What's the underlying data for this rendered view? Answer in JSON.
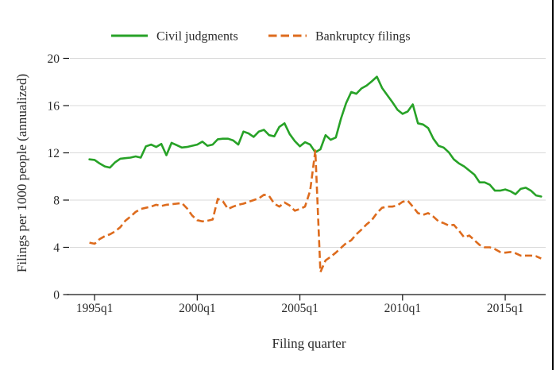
{
  "style": {
    "background": "#ffffff",
    "grid_color": "#d9d9d9",
    "axis_color": "#141414",
    "text_color": "#2b2b2b",
    "right_edge_line_color": "#000000"
  },
  "chart_data": {
    "type": "line",
    "title": "",
    "xlabel": "Filing quarter",
    "ylabel": "Filings per 1000 people (annualized)",
    "ylim": [
      0,
      20
    ],
    "y_ticks": [
      0,
      4,
      8,
      12,
      16,
      20
    ],
    "x_start": "1994q4",
    "x_end": "2016q4",
    "frequency": "quarterly",
    "grid": "horizontal",
    "legend_position": "top",
    "x_ticks": [
      {
        "label": "1995q1",
        "index": 1
      },
      {
        "label": "2000q1",
        "index": 21
      },
      {
        "label": "2005q1",
        "index": 41
      },
      {
        "label": "2010q1",
        "index": 61
      },
      {
        "label": "2015q1",
        "index": 81
      }
    ],
    "series": [
      {
        "name": "Civil judgments",
        "color": "#27a227",
        "line_style": "solid",
        "values": [
          11.45,
          11.4,
          11.1,
          10.85,
          10.75,
          11.2,
          11.5,
          11.55,
          11.6,
          11.7,
          11.6,
          12.55,
          12.7,
          12.5,
          12.75,
          11.8,
          12.85,
          12.65,
          12.45,
          12.5,
          12.6,
          12.7,
          12.95,
          12.6,
          12.7,
          13.15,
          13.2,
          13.2,
          13.05,
          12.7,
          13.8,
          13.65,
          13.35,
          13.8,
          13.95,
          13.5,
          13.4,
          14.2,
          14.5,
          13.6,
          13.0,
          12.55,
          12.9,
          12.7,
          12.05,
          12.3,
          13.5,
          13.1,
          13.3,
          14.9,
          16.2,
          17.15,
          17.0,
          17.45,
          17.7,
          18.05,
          18.45,
          17.5,
          16.9,
          16.3,
          15.65,
          15.3,
          15.5,
          16.1,
          14.5,
          14.4,
          14.1,
          13.2,
          12.6,
          12.45,
          12.05,
          11.45,
          11.1,
          10.85,
          10.5,
          10.15,
          9.5,
          9.5,
          9.3,
          8.8,
          8.8,
          8.9,
          8.75,
          8.5,
          8.95,
          9.05,
          8.8,
          8.4,
          8.3
        ]
      },
      {
        "name": "Bankruptcy filings",
        "color": "#dd6b1d",
        "line_style": "dashed",
        "values": [
          4.4,
          4.3,
          4.7,
          4.95,
          5.1,
          5.35,
          5.7,
          6.25,
          6.6,
          7.0,
          7.25,
          7.35,
          7.45,
          7.6,
          7.5,
          7.6,
          7.65,
          7.7,
          7.75,
          7.3,
          6.7,
          6.3,
          6.2,
          6.25,
          6.35,
          8.1,
          7.9,
          7.25,
          7.45,
          7.6,
          7.7,
          7.85,
          8.0,
          8.15,
          8.45,
          8.35,
          7.7,
          7.45,
          7.8,
          7.55,
          7.1,
          7.25,
          7.45,
          8.8,
          12.2,
          1.9,
          2.9,
          3.2,
          3.55,
          3.95,
          4.35,
          4.6,
          5.1,
          5.5,
          5.95,
          6.3,
          6.9,
          7.35,
          7.45,
          7.45,
          7.55,
          7.85,
          7.95,
          7.45,
          6.9,
          6.75,
          6.9,
          6.6,
          6.2,
          6.05,
          5.85,
          5.9,
          5.4,
          4.85,
          5.0,
          4.6,
          4.2,
          4.0,
          4.0,
          3.85,
          3.6,
          3.55,
          3.6,
          3.5,
          3.3,
          3.3,
          3.3,
          3.25,
          3.05
        ]
      }
    ]
  }
}
